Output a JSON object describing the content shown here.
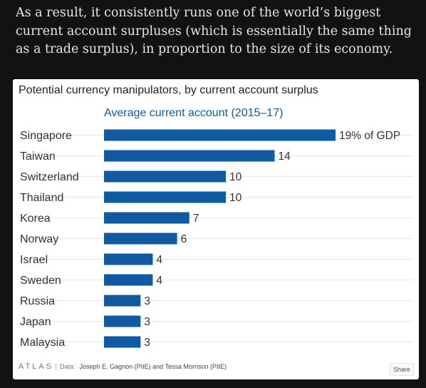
{
  "article": {
    "paragraph": "As a result, it consistently runs one of the world’s biggest current account surpluses (which is essentially the same thing as a trade surplus), in proportion to the size of its economy."
  },
  "chart_data": {
    "type": "bar",
    "orientation": "horizontal",
    "title": "Potential currency manipulators, by current account surplus",
    "series_title": "Average current account (2015–17)",
    "unit_label": "% of GDP",
    "categories": [
      "Singapore",
      "Taiwan",
      "Switzerland",
      "Thailand",
      "Korea",
      "Norway",
      "Israel",
      "Sweden",
      "Russia",
      "Japan",
      "Malaysia"
    ],
    "values": [
      19,
      14,
      10,
      10,
      7,
      6,
      4,
      4,
      3,
      3,
      3
    ],
    "value_labels": [
      "19% of GDP",
      "14",
      "10",
      "10",
      "7",
      "6",
      "4",
      "4",
      "3",
      "3",
      "3"
    ],
    "xlim": [
      0,
      19
    ],
    "grid": true,
    "bar_color": "#0f5aa0",
    "series_title_color": "#0f5aa0"
  },
  "footer": {
    "brand": "ATLAS",
    "source_label": "Data:",
    "source_text": "Joseph E. Gagnon (PIIE) and Tessa Morrison (PIIE)",
    "share_label": "Share"
  }
}
